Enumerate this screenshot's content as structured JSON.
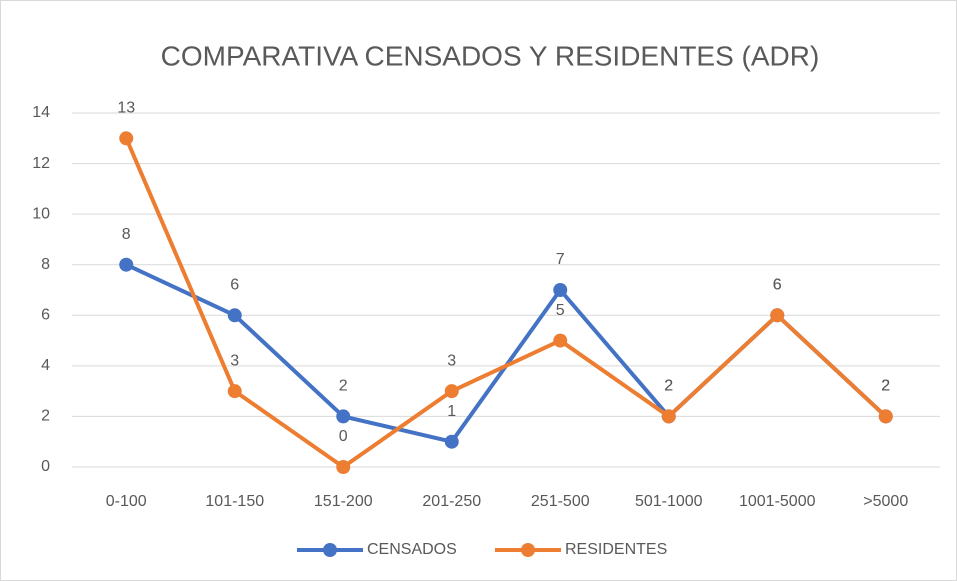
{
  "chart_data": {
    "type": "line",
    "title": "COMPARATIVA CENSADOS Y RESIDENTES (ADR)",
    "categories": [
      "0-100",
      "101-150",
      "151-200",
      "201-250",
      "251-500",
      "501-1000",
      "1001-5000",
      ">5000"
    ],
    "series": [
      {
        "name": "CENSADOS",
        "color": "#4472c4",
        "values": [
          8,
          6,
          2,
          1,
          7,
          2,
          6,
          2
        ]
      },
      {
        "name": "RESIDENTES",
        "color": "#ed7d31",
        "values": [
          13,
          3,
          0,
          3,
          5,
          2,
          6,
          2
        ]
      }
    ],
    "ylim": [
      0,
      14
    ],
    "yticks": [
      0,
      2,
      4,
      6,
      8,
      10,
      12,
      14
    ],
    "grid": true,
    "legend": "bottom"
  }
}
